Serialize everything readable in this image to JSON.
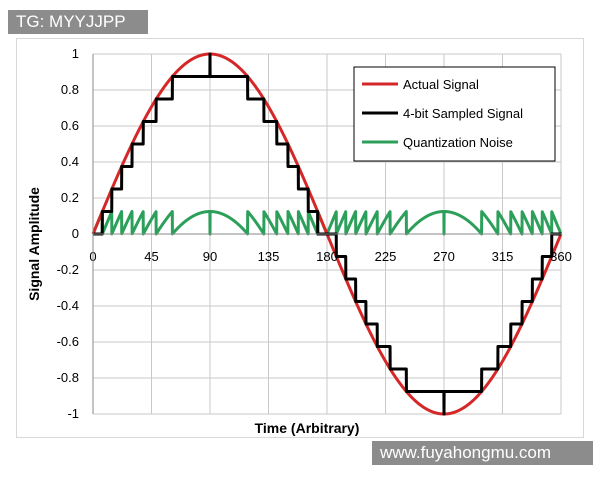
{
  "watermarks": {
    "top": "TG: MYYJJPP",
    "bottom": "www.fuyahongmu.com"
  },
  "chart_data": {
    "type": "line",
    "title": "",
    "xlabel": "Time (Arbitrary)",
    "ylabel": "Signal Amplitude",
    "xlim": [
      0,
      360
    ],
    "ylim": [
      -1,
      1
    ],
    "x_ticks": [
      0,
      45,
      90,
      135,
      180,
      225,
      270,
      315,
      360
    ],
    "x_tick_labels": [
      "0",
      "45",
      "90",
      "135",
      "180",
      "225",
      "270",
      "315",
      "360"
    ],
    "y_ticks": [
      -1,
      -0.8,
      -0.6,
      -0.4,
      -0.2,
      0,
      0.2,
      0.4,
      0.6,
      0.8,
      1
    ],
    "y_tick_labels": [
      "-1",
      "-0.8",
      "-0.6",
      "-0.4",
      "-0.2",
      "0",
      "0.2",
      "0.4",
      "0.6",
      "0.8",
      "1"
    ],
    "grid": true,
    "legend_position": "top-right",
    "series": [
      {
        "name": "Actual Signal",
        "color": "#d62728",
        "function": "sin"
      },
      {
        "name": "4-bit Sampled Signal",
        "color": "#000000",
        "function": "quantized_sin",
        "step": 0.125
      },
      {
        "name": "Quantization Noise",
        "color": "#2ca05a",
        "function": "quantization_error",
        "step": 0.125
      }
    ]
  }
}
